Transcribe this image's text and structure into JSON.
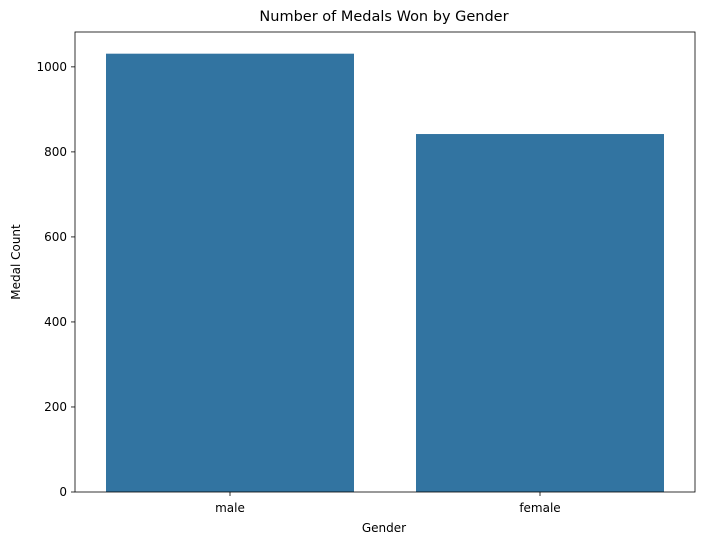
{
  "chart_data": {
    "type": "bar",
    "title": "Number of Medals Won by Gender",
    "xlabel": "Gender",
    "ylabel": "Medal Count",
    "categories": [
      "male",
      "female"
    ],
    "values": [
      1031,
      842
    ],
    "ylim": [
      0,
      1082
    ],
    "yticks": [
      0,
      200,
      400,
      600,
      800,
      1000
    ],
    "grid": false,
    "bar_color": "#3274a1"
  }
}
